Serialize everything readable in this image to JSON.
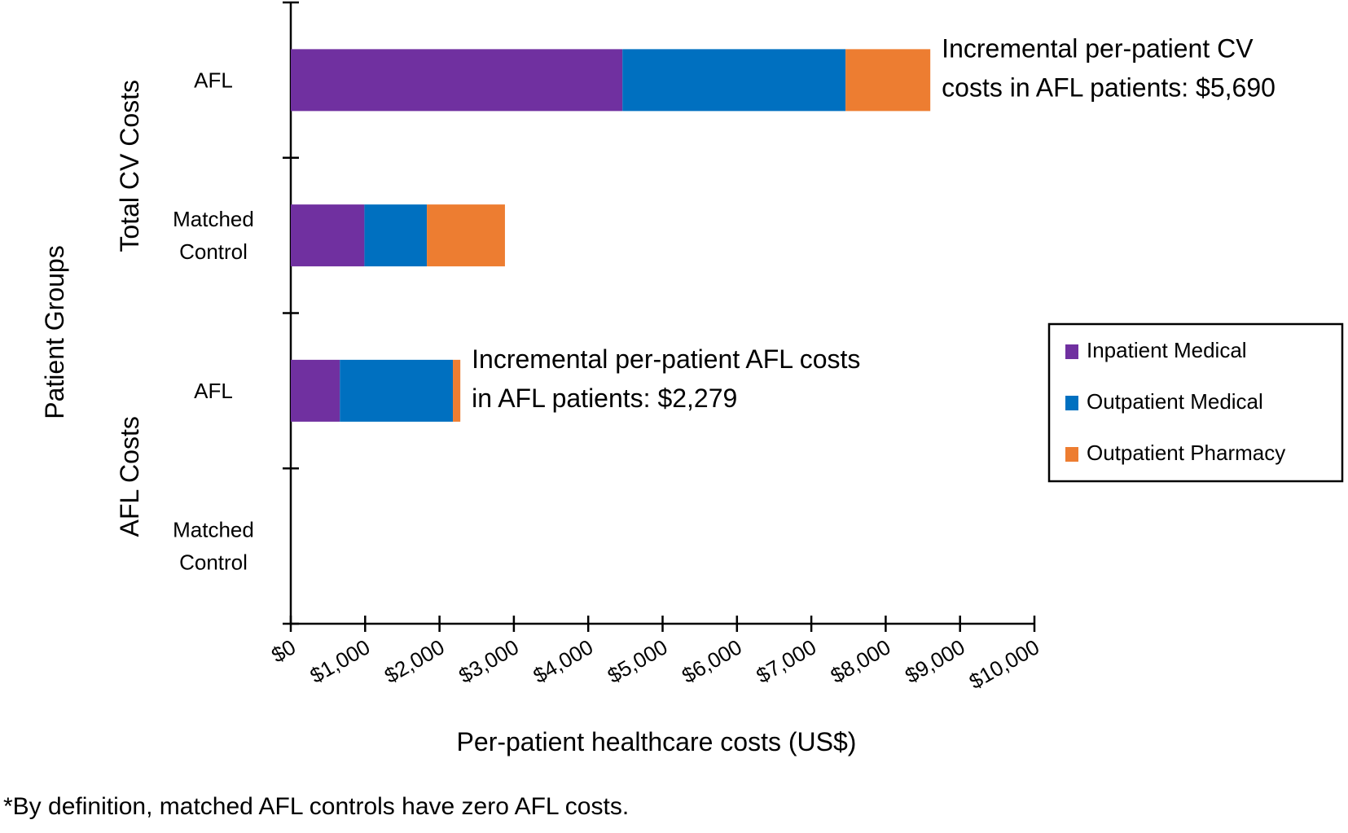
{
  "chart_data": {
    "type": "bar",
    "orientation": "horizontal",
    "stacked": true,
    "groups": [
      "Total CV Costs",
      "AFL Costs"
    ],
    "categories": [
      "AFL",
      "Matched Control",
      "AFL",
      "Matched Control"
    ],
    "category_lines": [
      [
        "AFL"
      ],
      [
        "Matched",
        "Control"
      ],
      [
        "AFL"
      ],
      [
        "Matched",
        "Control"
      ]
    ],
    "category_groups": [
      "Total CV Costs",
      "Total CV Costs",
      "AFL Costs",
      "AFL Costs"
    ],
    "series": [
      {
        "name": "Inpatient Medical",
        "color": "#7030a0",
        "values": [
          4460,
          990,
          660,
          0
        ]
      },
      {
        "name": "Outpatient Medical",
        "color": "#0070c0",
        "values": [
          3000,
          840,
          1520,
          0
        ]
      },
      {
        "name": "Outpatient Pharmacy",
        "color": "#ed7d31",
        "values": [
          1140,
          1050,
          100,
          0
        ]
      }
    ],
    "xlim": [
      0,
      10000
    ],
    "xticks": [
      0,
      1000,
      2000,
      3000,
      4000,
      5000,
      6000,
      7000,
      8000,
      9000,
      10000
    ],
    "xtick_labels": [
      "$0",
      "$1,000",
      "$2,000",
      "$3,000",
      "$4,000",
      "$5,000",
      "$6,000",
      "$7,000",
      "$8,000",
      "$9,000",
      "$10,000"
    ],
    "xlabel": "Per-patient healthcare costs (US$)",
    "ylabel": "Patient Groups",
    "grid": false,
    "legend_position": "right",
    "annotations": [
      {
        "category_index": 0,
        "lines": [
          "Incremental per-patient CV",
          "costs in AFL patients: $5,690"
        ]
      },
      {
        "category_index": 2,
        "lines": [
          "Incremental per-patient AFL costs",
          "in AFL patients: $2,279"
        ]
      }
    ],
    "footnote": "*By definition, matched AFL controls have zero AFL costs."
  }
}
